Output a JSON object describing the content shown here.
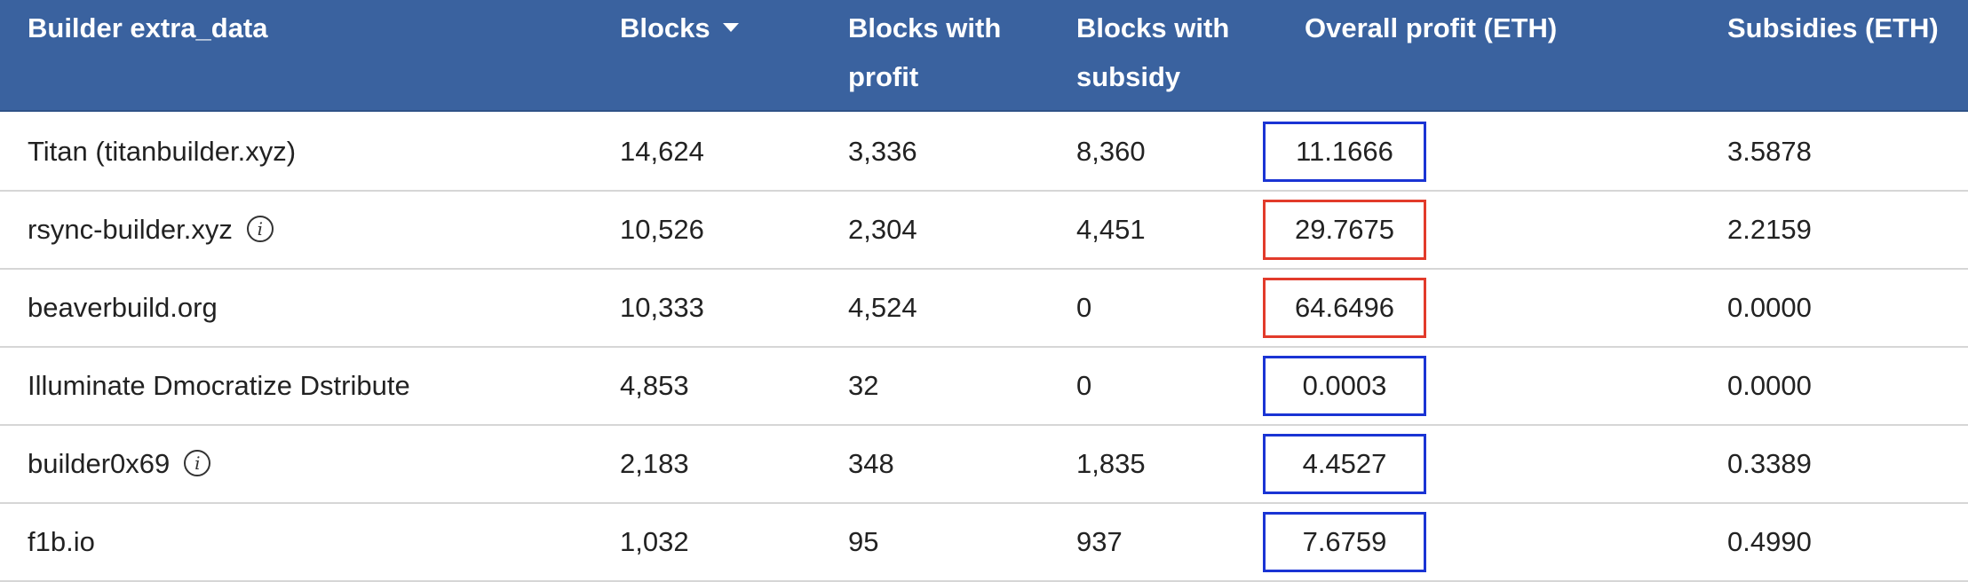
{
  "columns": {
    "builder": "Builder extra_data",
    "blocks": "Blocks",
    "blocks_with_profit_1": "Blocks with",
    "blocks_with_profit_2": "profit",
    "blocks_with_subsidy_1": "Blocks with",
    "blocks_with_subsidy_2": "subsidy",
    "overall_profit": "Overall profit (ETH)",
    "subsidies": "Subsidies (ETH)"
  },
  "sort": {
    "column": "Blocks",
    "direction": "descending",
    "icon": "sort-down-caret"
  },
  "highlight_colors": {
    "blue": "#1a34d4",
    "red": "#e23b2b"
  },
  "header_color": "#3a629f",
  "rows": [
    {
      "builder": "Titan (titanbuilder.xyz)",
      "has_info": false,
      "blocks": "14,624",
      "blocks_with_profit": "3,336",
      "blocks_with_subsidy": "8,360",
      "overall_profit": "11.1666",
      "highlight": "blue",
      "subsidies": "3.5878"
    },
    {
      "builder": "rsync-builder.xyz",
      "has_info": true,
      "info_icon": "i",
      "blocks": "10,526",
      "blocks_with_profit": "2,304",
      "blocks_with_subsidy": "4,451",
      "overall_profit": "29.7675",
      "highlight": "red",
      "subsidies": "2.2159"
    },
    {
      "builder": "beaverbuild.org",
      "has_info": false,
      "blocks": "10,333",
      "blocks_with_profit": "4,524",
      "blocks_with_subsidy": "0",
      "overall_profit": "64.6496",
      "highlight": "red",
      "subsidies": "0.0000"
    },
    {
      "builder": "Illuminate Dmocratize Dstribute",
      "has_info": false,
      "blocks": "4,853",
      "blocks_with_profit": "32",
      "blocks_with_subsidy": "0",
      "overall_profit": "0.0003",
      "highlight": "blue",
      "subsidies": "0.0000"
    },
    {
      "builder": "builder0x69",
      "has_info": true,
      "info_icon": "i",
      "blocks": "2,183",
      "blocks_with_profit": "348",
      "blocks_with_subsidy": "1,835",
      "overall_profit": "4.4527",
      "highlight": "blue",
      "subsidies": "0.3389"
    },
    {
      "builder": "f1b.io",
      "has_info": false,
      "blocks": "1,032",
      "blocks_with_profit": "95",
      "blocks_with_subsidy": "937",
      "overall_profit": "7.6759",
      "highlight": "blue",
      "subsidies": "0.4990"
    }
  ]
}
